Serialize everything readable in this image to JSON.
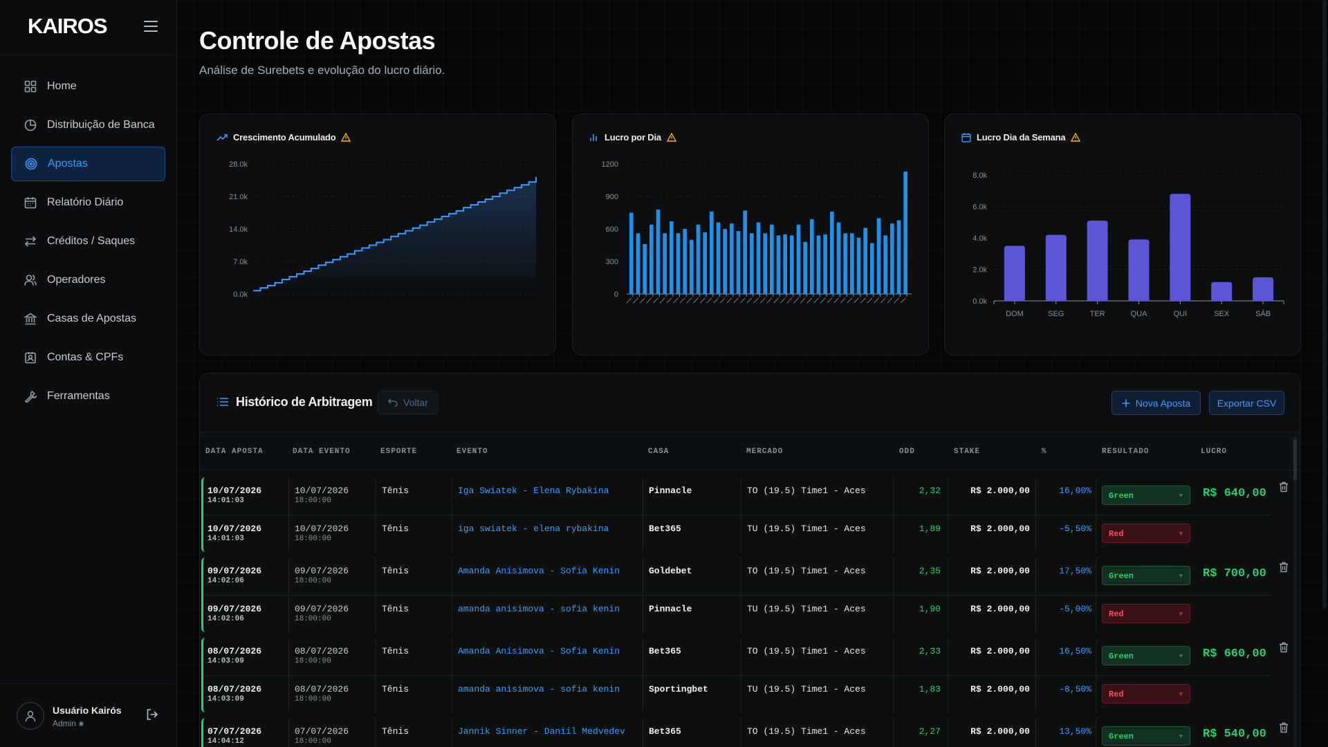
{
  "brand": {
    "logo_k": "K",
    "logo_rest": "AIROS"
  },
  "sidebar": {
    "items": [
      {
        "label": "Home",
        "icon": "grid-icon",
        "active": false
      },
      {
        "label": "Distribuição de Banca",
        "icon": "pie-chart-icon",
        "active": false
      },
      {
        "label": "Apostas",
        "icon": "target-icon",
        "active": true
      },
      {
        "label": "Relatório Diário",
        "icon": "calendar-icon",
        "active": false
      },
      {
        "label": "Créditos / Saques",
        "icon": "arrows-icon",
        "active": false
      },
      {
        "label": "Operadores",
        "icon": "users-icon",
        "active": false
      },
      {
        "label": "Casas de Apostas",
        "icon": "bank-icon",
        "active": false
      },
      {
        "label": "Contas & CPFs",
        "icon": "id-card-icon",
        "active": false
      },
      {
        "label": "Ferramentas",
        "icon": "wrench-icon",
        "active": false
      }
    ],
    "user": {
      "name": "Usuário Kairós",
      "role": "Admin"
    }
  },
  "header": {
    "title": "Controle de Apostas",
    "subtitle": "Análise de Surebets e evolução do lucro diário."
  },
  "cards": {
    "growth_title": "Crescimento Acumulado",
    "daily_title": "Lucro por Dia",
    "weekday_title": "Lucro Dia da Semana"
  },
  "chart_data": [
    {
      "type": "line",
      "title": "Crescimento Acumulado",
      "y_ticks": [
        "0.0k",
        "7.0k",
        "14.0k",
        "21.0k",
        "28.0k"
      ],
      "ylim": [
        0,
        28000
      ],
      "x": [
        1,
        2,
        3,
        4,
        5,
        6,
        7,
        8,
        9,
        10,
        11,
        12,
        13,
        14,
        15,
        16,
        17,
        18,
        19,
        20,
        21,
        22,
        23,
        24,
        25,
        26,
        27,
        28,
        29,
        30,
        31,
        32,
        33,
        34,
        35,
        36,
        37,
        38,
        39,
        40
      ],
      "values": [
        700,
        1300,
        1800,
        2400,
        3100,
        3700,
        4300,
        4900,
        5500,
        6200,
        6800,
        7400,
        8000,
        8600,
        9300,
        9900,
        10500,
        11100,
        11700,
        12400,
        13000,
        13600,
        14200,
        14800,
        15500,
        16100,
        16700,
        17300,
        17900,
        18600,
        19200,
        19800,
        20400,
        21000,
        21700,
        22300,
        22900,
        23500,
        24100,
        25200
      ],
      "color": "#3f9bff"
    },
    {
      "type": "bar",
      "title": "Lucro por Dia",
      "y_ticks": [
        "0",
        "300",
        "600",
        "900",
        "1200"
      ],
      "ylim": [
        0,
        1200
      ],
      "values": [
        750,
        560,
        460,
        640,
        780,
        560,
        670,
        560,
        600,
        500,
        640,
        570,
        760,
        660,
        600,
        650,
        580,
        770,
        560,
        660,
        560,
        640,
        540,
        550,
        540,
        640,
        480,
        690,
        540,
        550,
        760,
        660,
        560,
        560,
        520,
        610,
        470,
        700,
        540,
        650,
        680,
        1130
      ],
      "color": "#1f8fe8"
    },
    {
      "type": "bar",
      "title": "Lucro Dia da Semana",
      "categories": [
        "DOM",
        "SEG",
        "TER",
        "QUA",
        "QUI",
        "SEX",
        "SÁB"
      ],
      "values": [
        3500,
        4200,
        5100,
        3900,
        6800,
        1200,
        1500
      ],
      "y_ticks": [
        "0.0k",
        "2.0k",
        "4.0k",
        "6.0k",
        "8.0k"
      ],
      "ylim": [
        0,
        8000
      ],
      "color": "#5b56d6"
    }
  ],
  "history": {
    "title": "Histórico de Arbitragem",
    "back_label": "Voltar",
    "new_label": "Nova Aposta",
    "export_label": "Exportar CSV",
    "columns": [
      "DATA APOSTA",
      "DATA EVENTO",
      "ESPORTE",
      "EVENTO",
      "CASA",
      "MERCADO",
      "ODD",
      "STAKE",
      "%",
      "RESULTADO",
      "LUCRO"
    ],
    "groups": [
      {
        "lucro": "R$ 640,00",
        "rows": [
          {
            "data_aposta": "10/07/2026",
            "hora_aposta": "14:01:03",
            "data_evento": "10/07/2026",
            "hora_evento": "18:00:00",
            "esporte": "Tênis",
            "evento": "Iga Swiatek - Elena Rybakina",
            "casa": "Pinnacle",
            "mercado": "TO (19.5) Time1 - Aces",
            "odd": "2,32",
            "stake": "R$ 2.000,00",
            "pct": "16,00%",
            "resultado": "Green"
          },
          {
            "data_aposta": "10/07/2026",
            "hora_aposta": "14:01:03",
            "data_evento": "10/07/2026",
            "hora_evento": "18:00:00",
            "esporte": "Tênis",
            "evento": "iga swiatek - elena rybakina",
            "casa": "Bet365",
            "mercado": "TU (19.5) Time1 - Aces",
            "odd": "1,89",
            "stake": "R$ 2.000,00",
            "pct": "-5,50%",
            "resultado": "Red"
          }
        ]
      },
      {
        "lucro": "R$ 700,00",
        "rows": [
          {
            "data_aposta": "09/07/2026",
            "hora_aposta": "14:02:06",
            "data_evento": "09/07/2026",
            "hora_evento": "18:00:00",
            "esporte": "Tênis",
            "evento": "Amanda Anisimova - Sofia Kenin",
            "casa": "Goldebet",
            "mercado": "TO (19.5) Time1 - Aces",
            "odd": "2,35",
            "stake": "R$ 2.000,00",
            "pct": "17,50%",
            "resultado": "Green"
          },
          {
            "data_aposta": "09/07/2026",
            "hora_aposta": "14:02:06",
            "data_evento": "09/07/2026",
            "hora_evento": "18:00:00",
            "esporte": "Tênis",
            "evento": "amanda anisimova - sofia kenin",
            "casa": "Pinnacle",
            "mercado": "TU (19.5) Time1 - Aces",
            "odd": "1,90",
            "stake": "R$ 2.000,00",
            "pct": "-5,00%",
            "resultado": "Red"
          }
        ]
      },
      {
        "lucro": "R$ 660,00",
        "rows": [
          {
            "data_aposta": "08/07/2026",
            "hora_aposta": "14:03:09",
            "data_evento": "08/07/2026",
            "hora_evento": "18:00:00",
            "esporte": "Tênis",
            "evento": "Amanda Anisimova - Sofia Kenin",
            "casa": "Bet365",
            "mercado": "TO (19.5) Time1 - Aces",
            "odd": "2,33",
            "stake": "R$ 2.000,00",
            "pct": "16,50%",
            "resultado": "Green"
          },
          {
            "data_aposta": "08/07/2026",
            "hora_aposta": "14:03:09",
            "data_evento": "08/07/2026",
            "hora_evento": "18:00:00",
            "esporte": "Tênis",
            "evento": "amanda anisimova - sofia kenin",
            "casa": "Sportingbet",
            "mercado": "TU (19.5) Time1 - Aces",
            "odd": "1,83",
            "stake": "R$ 2.000,00",
            "pct": "-8,50%",
            "resultado": "Red"
          }
        ]
      },
      {
        "lucro": "R$ 540,00",
        "rows": [
          {
            "data_aposta": "07/07/2026",
            "hora_aposta": "14:04:12",
            "data_evento": "07/07/2026",
            "hora_evento": "18:00:00",
            "esporte": "Tênis",
            "evento": "Jannik Sinner - Daniil Medvedev",
            "casa": "Bet365",
            "mercado": "TO (19.5) Time1 - Aces",
            "odd": "2,27",
            "stake": "R$ 2.000,00",
            "pct": "13,50%",
            "resultado": "Green"
          }
        ]
      }
    ]
  },
  "colors": {
    "accent": "#3f9bff",
    "green": "#2ecc71",
    "red": "#ff4d5e",
    "purple": "#5b56d6",
    "warn": "#f5b400"
  }
}
